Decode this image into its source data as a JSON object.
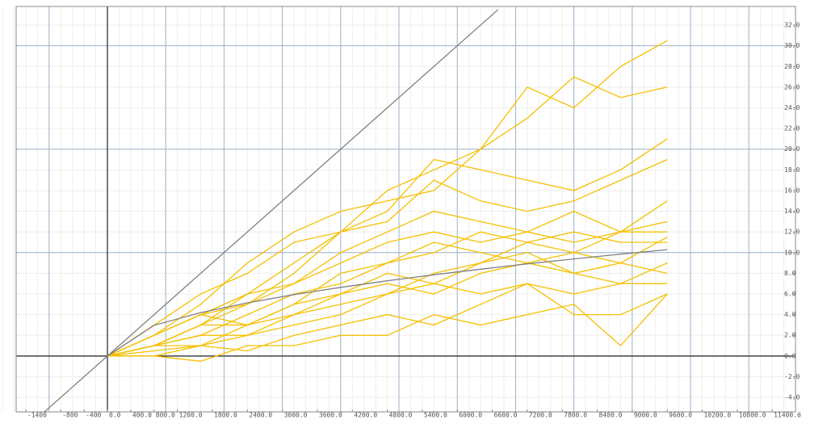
{
  "chart_data": {
    "type": "line",
    "x": [
      0,
      800,
      1600,
      2400,
      3200,
      4000,
      4800,
      5600,
      6400,
      7200,
      8000,
      8800,
      9600
    ],
    "xlim": [
      -1842,
      11800
    ],
    "ylim": [
      -5.4,
      33.8
    ],
    "xticks": [
      -1400,
      -800,
      -400,
      {
        "value": 0,
        "label": "0.0"
      },
      {
        "value": 400,
        "label": "400.0"
      },
      {
        "value": 800,
        "label": "800.0"
      },
      {
        "value": 1200,
        "label": "1200.0"
      },
      {
        "value": 1800,
        "label": "1800.0"
      },
      {
        "value": 2400,
        "label": "2400.0"
      },
      {
        "value": 3000,
        "label": "3000.0"
      },
      {
        "value": 3600,
        "label": "3600.0"
      },
      {
        "value": 4200,
        "label": "4200.0"
      },
      {
        "value": 4800,
        "label": "4800.0"
      },
      {
        "value": 5400,
        "label": "5400.0"
      },
      {
        "value": 6000,
        "label": "6000.0"
      },
      {
        "value": 6600,
        "label": "6600.0"
      },
      {
        "value": 7200,
        "label": "7200.0"
      },
      {
        "value": 7800,
        "label": "7800.0"
      },
      {
        "value": 8400,
        "label": "8400.0"
      },
      {
        "value": 9000,
        "label": "9000.0"
      },
      {
        "value": 9600,
        "label": "9600.0"
      },
      {
        "value": 10200,
        "label": "10200.0"
      },
      {
        "value": 10800,
        "label": "10800.0"
      },
      {
        "value": 11400,
        "label": "11400.0"
      }
    ],
    "yticks": [
      {
        "value": 32,
        "label": "32.0"
      },
      {
        "value": 30,
        "label": "30.0"
      },
      {
        "value": 28,
        "label": "28.0"
      },
      {
        "value": 26,
        "label": "26.0"
      },
      {
        "value": 24,
        "label": "24.0"
      },
      {
        "value": 22,
        "label": "22.0"
      },
      {
        "value": 20,
        "label": "20.0"
      },
      {
        "value": 18,
        "label": "18.0"
      },
      {
        "value": 16,
        "label": "16.0"
      },
      {
        "value": 14,
        "label": "14.0"
      },
      {
        "value": 12,
        "label": "12.0"
      },
      {
        "value": 10,
        "label": "10.0"
      },
      {
        "value": 8,
        "label": "8.0"
      },
      {
        "value": 6,
        "label": "6.0"
      },
      {
        "value": 4,
        "label": "4.0"
      },
      {
        "value": 2,
        "label": "2.0"
      },
      {
        "value": 0,
        "label": "0.0"
      },
      {
        "value": -2,
        "label": "-2.0"
      },
      {
        "value": -4,
        "label": "-4.0"
      }
    ],
    "grid": {
      "x_major": 1000,
      "y_major": 10,
      "x_minor": 200,
      "y_minor": 2,
      "major_color": "#9fb4cc",
      "minor_color": "#eeeeee",
      "axis_color": "#222222"
    },
    "series": [
      {
        "color": "#f5c000",
        "values": [
          0,
          3,
          6,
          8,
          11,
          12,
          16,
          18,
          20,
          26,
          24,
          28,
          30.5
        ]
      },
      {
        "color": "#f5c000",
        "values": [
          0,
          2,
          5,
          9,
          12,
          14,
          15,
          16,
          20,
          23,
          27,
          25,
          26
        ]
      },
      {
        "color": "#f5c000",
        "values": [
          0,
          2,
          4,
          6,
          9,
          12,
          14,
          19,
          18,
          17,
          16,
          18,
          21
        ]
      },
      {
        "color": "#f5c000",
        "values": [
          0,
          1,
          3,
          5,
          8,
          12,
          13,
          17,
          15,
          14,
          15,
          17,
          19
        ]
      },
      {
        "color": "#f5c000",
        "values": [
          0,
          1,
          3,
          6,
          7,
          10,
          12,
          14,
          13,
          12,
          14,
          12,
          15
        ]
      },
      {
        "color": "#f5c000",
        "values": [
          0,
          2,
          4,
          5,
          7,
          9,
          11,
          12,
          11,
          12,
          11,
          12,
          12
        ]
      },
      {
        "color": "#f5c000",
        "values": [
          0,
          1,
          2,
          4,
          6,
          7,
          9,
          10,
          12,
          11,
          12,
          11,
          11
        ]
      },
      {
        "color": "#f5c000",
        "values": [
          0,
          1,
          3,
          3,
          5,
          8,
          9,
          11,
          10,
          9,
          10,
          12,
          13
        ]
      },
      {
        "color": "#f5c000",
        "values": [
          0,
          0.5,
          1,
          3,
          4,
          6,
          8,
          7,
          9,
          11,
          10,
          9,
          8
        ]
      },
      {
        "color": "#f5c000",
        "values": [
          0,
          1,
          2,
          2,
          4,
          5,
          6,
          8,
          9,
          10,
          8,
          7,
          9
        ]
      },
      {
        "color": "#f5c000",
        "values": [
          0,
          0,
          1,
          2,
          3,
          4,
          6,
          7,
          6,
          7,
          6,
          7,
          7
        ]
      },
      {
        "color": "#f5c000",
        "values": [
          0,
          1,
          1,
          0.5,
          2,
          3,
          4,
          3,
          5,
          7,
          4,
          4,
          6
        ]
      },
      {
        "color": "#f5c000",
        "values": [
          0,
          0,
          -0.5,
          1,
          1,
          2,
          2,
          4,
          3,
          4,
          5,
          1,
          6
        ]
      },
      {
        "color": "#f5c000",
        "values": [
          0,
          2,
          4,
          3,
          5,
          6,
          7,
          6,
          8,
          9,
          8,
          9,
          11.5
        ]
      },
      {
        "color": "#808080",
        "values": [
          0,
          2.97,
          4.2,
          5.14,
          5.94,
          6.64,
          7.27,
          7.86,
          8.4,
          8.91,
          9.39,
          9.85,
          10.29
        ]
      },
      {
        "color": "#808080",
        "x": [
          -1400,
          6700
        ],
        "values": [
          -7,
          33.5
        ]
      }
    ]
  }
}
